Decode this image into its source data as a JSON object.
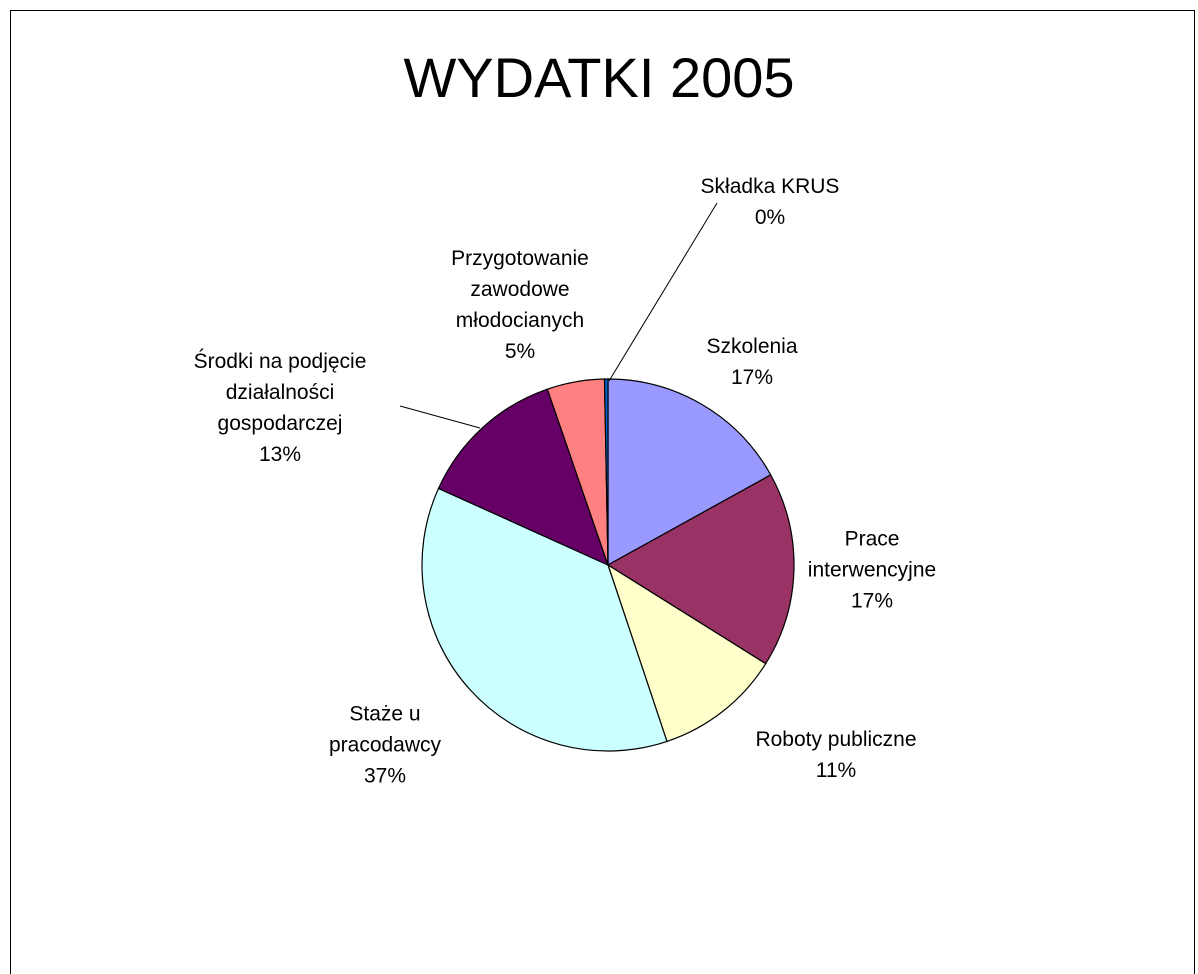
{
  "chart_data": {
    "type": "pie",
    "title": "WYDATKI 2005",
    "categories": [
      "Szkolenia",
      "Prace interwencyjne",
      "Roboty publiczne",
      "Staże u pracodawcy",
      "Środki na podjęcie działalności gospodarczej",
      "Przygotowanie zawodowe młodocianych",
      "Składka KRUS"
    ],
    "values": [
      17,
      17,
      11,
      37,
      13,
      5,
      0.3
    ],
    "value_labels": [
      "17%",
      "17%",
      "11%",
      "37%",
      "13%",
      "5%",
      "0%"
    ],
    "colors": [
      "#9999ff",
      "#993366",
      "#ffffcc",
      "#ccffff",
      "#660066",
      "#ff8080",
      "#0066cc"
    ]
  }
}
